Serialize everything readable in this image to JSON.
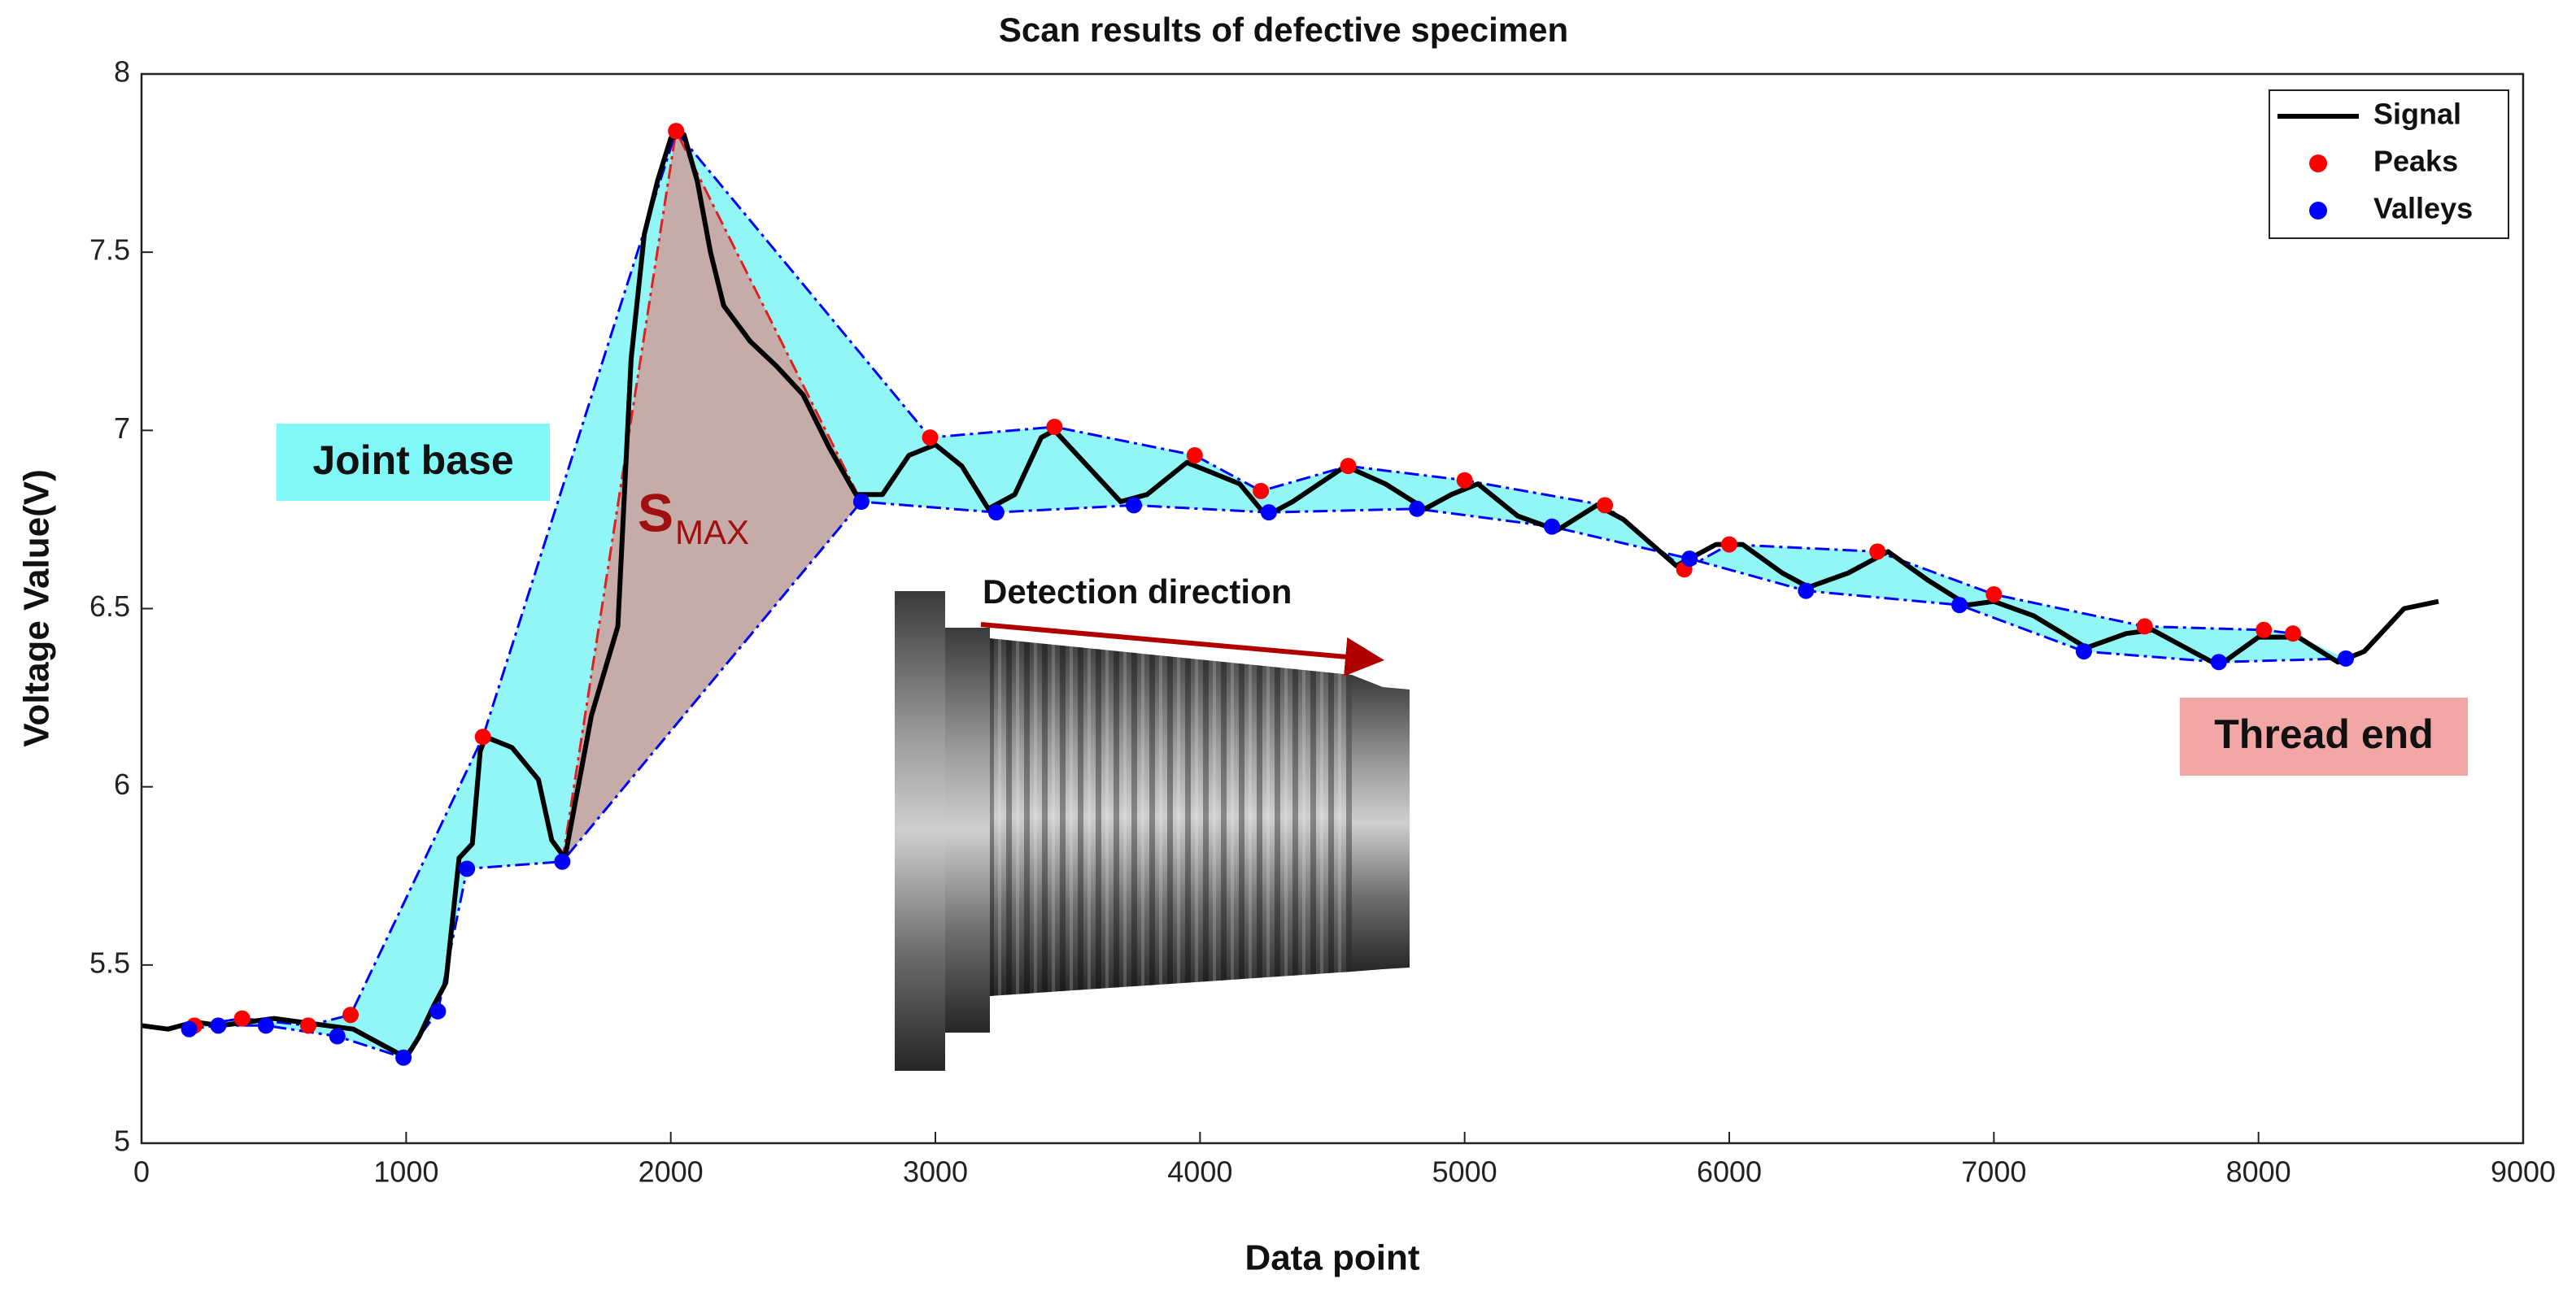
{
  "chart_data": {
    "type": "line",
    "title": "Scan results of defective specimen",
    "x_label": "Data point",
    "y_label": "Voltage Value(V)",
    "xlim": [
      0,
      9000
    ],
    "ylim": [
      5,
      8
    ],
    "xticks": [
      0,
      1000,
      2000,
      3000,
      4000,
      5000,
      6000,
      7000,
      8000,
      9000
    ],
    "yticks": [
      5,
      5.5,
      6,
      6.5,
      7,
      7.5,
      8
    ],
    "legend": "upper right",
    "series": [
      {
        "name": "Signal",
        "color": "#000000",
        "x": [
          0,
          100,
          200,
          300,
          400,
          500,
          600,
          700,
          800,
          900,
          1000,
          1050,
          1100,
          1150,
          1200,
          1250,
          1280,
          1300,
          1400,
          1500,
          1550,
          1600,
          1650,
          1700,
          1800,
          1850,
          1900,
          1950,
          2000,
          2050,
          2100,
          2150,
          2200,
          2300,
          2400,
          2500,
          2600,
          2700,
          2800,
          2900,
          3000,
          3100,
          3200,
          3300,
          3400,
          3450,
          3550,
          3700,
          3800,
          3950,
          4050,
          4150,
          4250,
          4350,
          4550,
          4700,
          4850,
          4950,
          5050,
          5200,
          5350,
          5500,
          5600,
          5800,
          5950,
          6050,
          6200,
          6300,
          6450,
          6600,
          6750,
          6900,
          7000,
          7150,
          7350,
          7500,
          7600,
          7750,
          7850,
          8000,
          8150,
          8300,
          8400,
          8550,
          8680
        ],
        "values": [
          5.33,
          5.32,
          5.34,
          5.33,
          5.34,
          5.35,
          5.34,
          5.33,
          5.32,
          5.28,
          5.24,
          5.3,
          5.38,
          5.45,
          5.8,
          5.84,
          6.1,
          6.14,
          6.11,
          6.02,
          5.85,
          5.8,
          6.0,
          6.2,
          6.45,
          7.2,
          7.55,
          7.7,
          7.82,
          7.83,
          7.7,
          7.5,
          7.35,
          7.25,
          7.18,
          7.1,
          6.95,
          6.82,
          6.82,
          6.93,
          6.96,
          6.9,
          6.78,
          6.82,
          6.98,
          7.0,
          6.92,
          6.8,
          6.82,
          6.91,
          6.88,
          6.85,
          6.76,
          6.8,
          6.9,
          6.85,
          6.78,
          6.82,
          6.85,
          6.76,
          6.72,
          6.79,
          6.75,
          6.62,
          6.68,
          6.68,
          6.6,
          6.56,
          6.6,
          6.66,
          6.58,
          6.51,
          6.52,
          6.48,
          6.39,
          6.43,
          6.44,
          6.38,
          6.34,
          6.42,
          6.42,
          6.35,
          6.38,
          6.5,
          6.52
        ]
      },
      {
        "name": "Peaks",
        "color": "#ff0000",
        "x": [
          200,
          380,
          630,
          790,
          1290,
          2020,
          2980,
          3450,
          3980,
          4230,
          4560,
          5000,
          5530,
          5830,
          6000,
          6560,
          7000,
          7570,
          8020,
          8130
        ],
        "values": [
          5.33,
          5.35,
          5.33,
          5.36,
          6.14,
          7.84,
          6.98,
          7.01,
          6.93,
          6.83,
          6.9,
          6.86,
          6.79,
          6.61,
          6.68,
          6.66,
          6.54,
          6.45,
          6.44,
          6.43
        ]
      },
      {
        "name": "Valleys",
        "color": "#0000ff",
        "x": [
          180,
          290,
          470,
          740,
          990,
          1120,
          1230,
          1590,
          2720,
          3230,
          3750,
          4260,
          4820,
          5330,
          5850,
          6290,
          6870,
          7340,
          7850,
          8330
        ],
        "values": [
          5.32,
          5.33,
          5.33,
          5.3,
          5.24,
          5.37,
          5.77,
          5.79,
          6.8,
          6.77,
          6.79,
          6.77,
          6.78,
          6.73,
          6.64,
          6.55,
          6.51,
          6.38,
          6.35,
          6.36
        ]
      }
    ],
    "annotations": {
      "joint_base": "Joint base",
      "s_max": {
        "main": "S",
        "sub": "MAX"
      },
      "detection_direction": "Detection direction",
      "thread_end": "Thread end"
    }
  }
}
